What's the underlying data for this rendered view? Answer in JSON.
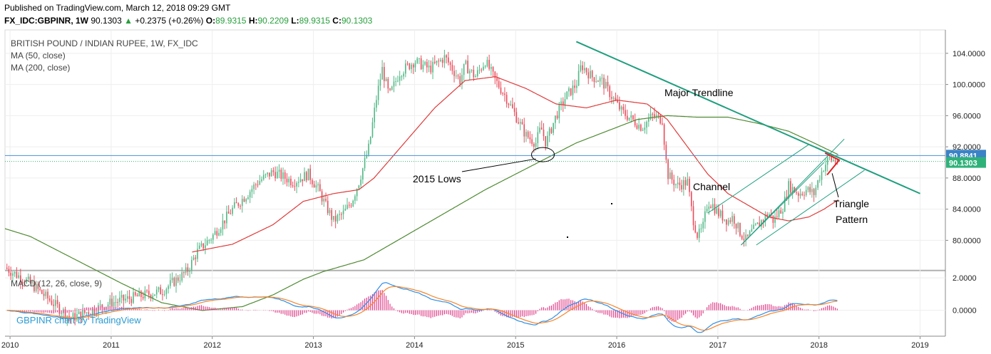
{
  "header": {
    "published": "Published on TradingView.com, March 12, 2018 09:29 GMT",
    "symbol": "FX_IDC:GBPINR, 1W",
    "last": "90.1303",
    "change_arrow": "▲",
    "change": "+0.2375 (+0.26%)",
    "o_label": "O:",
    "o": "89.9315",
    "h_label": "H:",
    "h": "90.2209",
    "l_label": "L:",
    "l": "89.9315",
    "c_label": "C:",
    "c": "90.1303"
  },
  "legend": {
    "instrument": "BRITISH POUND / INDIAN RUPEE, 1W, FX_IDC",
    "ma50": "MA (50, close)",
    "ma200": "MA (200, close)",
    "macd": "MACD (12, 26, close, 9)",
    "watermark": "GBPINR chart by TradingView"
  },
  "colors": {
    "up": "#53b987",
    "down": "#eb4d5c",
    "ma50": "#e03a3a",
    "ma200": "#4f8a32",
    "trendline": "#1f9e7e",
    "triangle": "#e02020",
    "price_line": "#4a90d9",
    "last_price": "#2fb27a",
    "price_tag": "#3b83c6",
    "macd": "#2e8ee6",
    "signal": "#f5852a",
    "hist": "#e0408a",
    "watermark": "#2a9bd4"
  },
  "chart_data": [
    {
      "type": "candlestick",
      "title": "BRITISH POUND / INDIAN RUPEE, 1W, FX_IDC",
      "x_ticks": [
        "2010",
        "2011",
        "2012",
        "2013",
        "2014",
        "2015",
        "2016",
        "2017",
        "2018",
        "2019"
      ],
      "y_ticks": [
        "80.0000",
        "84.0000",
        "88.0000",
        "92.0000",
        "96.0000",
        "100.0000",
        "104.0000"
      ],
      "ylim": [
        76.2,
        107.0
      ],
      "xlim": [
        2009.95,
        2019.25
      ],
      "price_tag_high": "90.8841",
      "price_tag_last": "90.1303",
      "close_keypoints": [
        [
          2009.95,
          76.5
        ],
        [
          2010.2,
          74.5
        ],
        [
          2010.6,
          70.0
        ],
        [
          2011.0,
          72.0
        ],
        [
          2011.5,
          73.5
        ],
        [
          2011.75,
          76.0
        ],
        [
          2011.85,
          78.5
        ],
        [
          2012.0,
          80.5
        ],
        [
          2012.2,
          84.0
        ],
        [
          2012.35,
          86.0
        ],
        [
          2012.45,
          87.5
        ],
        [
          2012.6,
          88.8
        ],
        [
          2012.8,
          87.5
        ],
        [
          2012.95,
          88.5
        ],
        [
          2013.05,
          86.5
        ],
        [
          2013.12,
          84.5
        ],
        [
          2013.2,
          82.5
        ],
        [
          2013.3,
          83.5
        ],
        [
          2013.38,
          85.0
        ],
        [
          2013.45,
          87.5
        ],
        [
          2013.55,
          92.0
        ],
        [
          2013.62,
          98.0
        ],
        [
          2013.68,
          102.0
        ],
        [
          2013.75,
          98.5
        ],
        [
          2013.85,
          101.5
        ],
        [
          2014.0,
          103.0
        ],
        [
          2014.15,
          102.0
        ],
        [
          2014.3,
          103.5
        ],
        [
          2014.45,
          100.5
        ],
        [
          2014.5,
          102.5
        ],
        [
          2014.6,
          101.0
        ],
        [
          2014.7,
          103.0
        ],
        [
          2014.8,
          100.5
        ],
        [
          2014.9,
          98.5
        ],
        [
          2015.0,
          96.0
        ],
        [
          2015.1,
          93.5
        ],
        [
          2015.2,
          92.5
        ],
        [
          2015.25,
          94.5
        ],
        [
          2015.3,
          92.5
        ],
        [
          2015.4,
          96.0
        ],
        [
          2015.5,
          98.5
        ],
        [
          2015.6,
          100.0
        ],
        [
          2015.65,
          102.5
        ],
        [
          2015.75,
          101.0
        ],
        [
          2015.85,
          100.5
        ],
        [
          2015.95,
          98.5
        ],
        [
          2016.05,
          96.5
        ],
        [
          2016.15,
          95.5
        ],
        [
          2016.25,
          94.5
        ],
        [
          2016.35,
          96.0
        ],
        [
          2016.45,
          95.5
        ],
        [
          2016.5,
          88.5
        ],
        [
          2016.6,
          87.0
        ],
        [
          2016.7,
          87.5
        ],
        [
          2016.75,
          83.0
        ],
        [
          2016.8,
          80.5
        ],
        [
          2016.85,
          81.5
        ],
        [
          2016.9,
          85.0
        ],
        [
          2016.95,
          84.5
        ],
        [
          2017.0,
          83.5
        ],
        [
          2017.1,
          82.5
        ],
        [
          2017.15,
          83.0
        ],
        [
          2017.22,
          81.0
        ],
        [
          2017.28,
          80.0
        ],
        [
          2017.33,
          81.0
        ],
        [
          2017.4,
          82.0
        ],
        [
          2017.5,
          83.5
        ],
        [
          2017.55,
          82.5
        ],
        [
          2017.6,
          83.5
        ],
        [
          2017.65,
          84.5
        ],
        [
          2017.7,
          87.0
        ],
        [
          2017.75,
          86.5
        ],
        [
          2017.8,
          86.0
        ],
        [
          2017.88,
          86.5
        ],
        [
          2017.95,
          86.0
        ],
        [
          2018.0,
          88.0
        ],
        [
          2018.05,
          89.5
        ],
        [
          2018.1,
          90.5
        ],
        [
          2018.15,
          90.2
        ],
        [
          2018.19,
          90.13
        ]
      ],
      "ma50_keypoints": [
        [
          2011.8,
          78.5
        ],
        [
          2012.2,
          79.5
        ],
        [
          2012.6,
          82.0
        ],
        [
          2012.9,
          85.0
        ],
        [
          2013.2,
          86.0
        ],
        [
          2013.45,
          86.5
        ],
        [
          2013.6,
          88.0
        ],
        [
          2013.9,
          92.5
        ],
        [
          2014.2,
          97.0
        ],
        [
          2014.5,
          100.5
        ],
        [
          2014.8,
          101.0
        ],
        [
          2015.1,
          99.5
        ],
        [
          2015.4,
          97.5
        ],
        [
          2015.7,
          97.0
        ],
        [
          2016.0,
          98.0
        ],
        [
          2016.3,
          97.5
        ],
        [
          2016.5,
          95.5
        ],
        [
          2016.7,
          92.0
        ],
        [
          2016.9,
          88.5
        ],
        [
          2017.1,
          86.0
        ],
        [
          2017.3,
          84.5
        ],
        [
          2017.5,
          83.0
        ],
        [
          2017.7,
          82.5
        ],
        [
          2017.9,
          83.0
        ],
        [
          2018.05,
          84.0
        ],
        [
          2018.19,
          85.2
        ]
      ],
      "ma200_keypoints": [
        [
          2009.95,
          81.5
        ],
        [
          2010.2,
          80.5
        ],
        [
          2010.5,
          78.5
        ],
        [
          2010.8,
          76.5
        ],
        [
          2011.1,
          74.5
        ],
        [
          2011.5,
          72.0
        ],
        [
          2011.9,
          71.0
        ],
        [
          2012.3,
          71.5
        ],
        [
          2012.6,
          73.0
        ],
        [
          2012.9,
          75.0
        ],
        [
          2013.1,
          76.0
        ],
        [
          2013.5,
          77.5
        ],
        [
          2013.9,
          80.5
        ],
        [
          2014.3,
          83.5
        ],
        [
          2014.7,
          86.5
        ],
        [
          2015.0,
          88.5
        ],
        [
          2015.3,
          90.5
        ],
        [
          2015.6,
          92.5
        ],
        [
          2015.9,
          94.0
        ],
        [
          2016.2,
          95.5
        ],
        [
          2016.5,
          96.0
        ],
        [
          2016.8,
          95.8
        ],
        [
          2017.1,
          95.8
        ],
        [
          2017.4,
          95.0
        ],
        [
          2017.7,
          94.0
        ],
        [
          2017.95,
          92.5
        ],
        [
          2018.19,
          91.0
        ]
      ],
      "annotations": [
        {
          "label": "Major Trendline",
          "x1": 2015.6,
          "y1": 105.5,
          "x2": 2019.0,
          "y2": 86.0
        },
        {
          "label": "2015 Lows"
        },
        {
          "label": "Channel"
        },
        {
          "label": "Triangle Pattern",
          "line1": "Triangle",
          "line2": "Pattern"
        }
      ]
    },
    {
      "type": "line",
      "title": "MACD (12, 26, close, 9)",
      "y_ticks": [
        "2.0000",
        "0.0000"
      ],
      "ylim": [
        -1.6,
        2.4
      ]
    }
  ]
}
